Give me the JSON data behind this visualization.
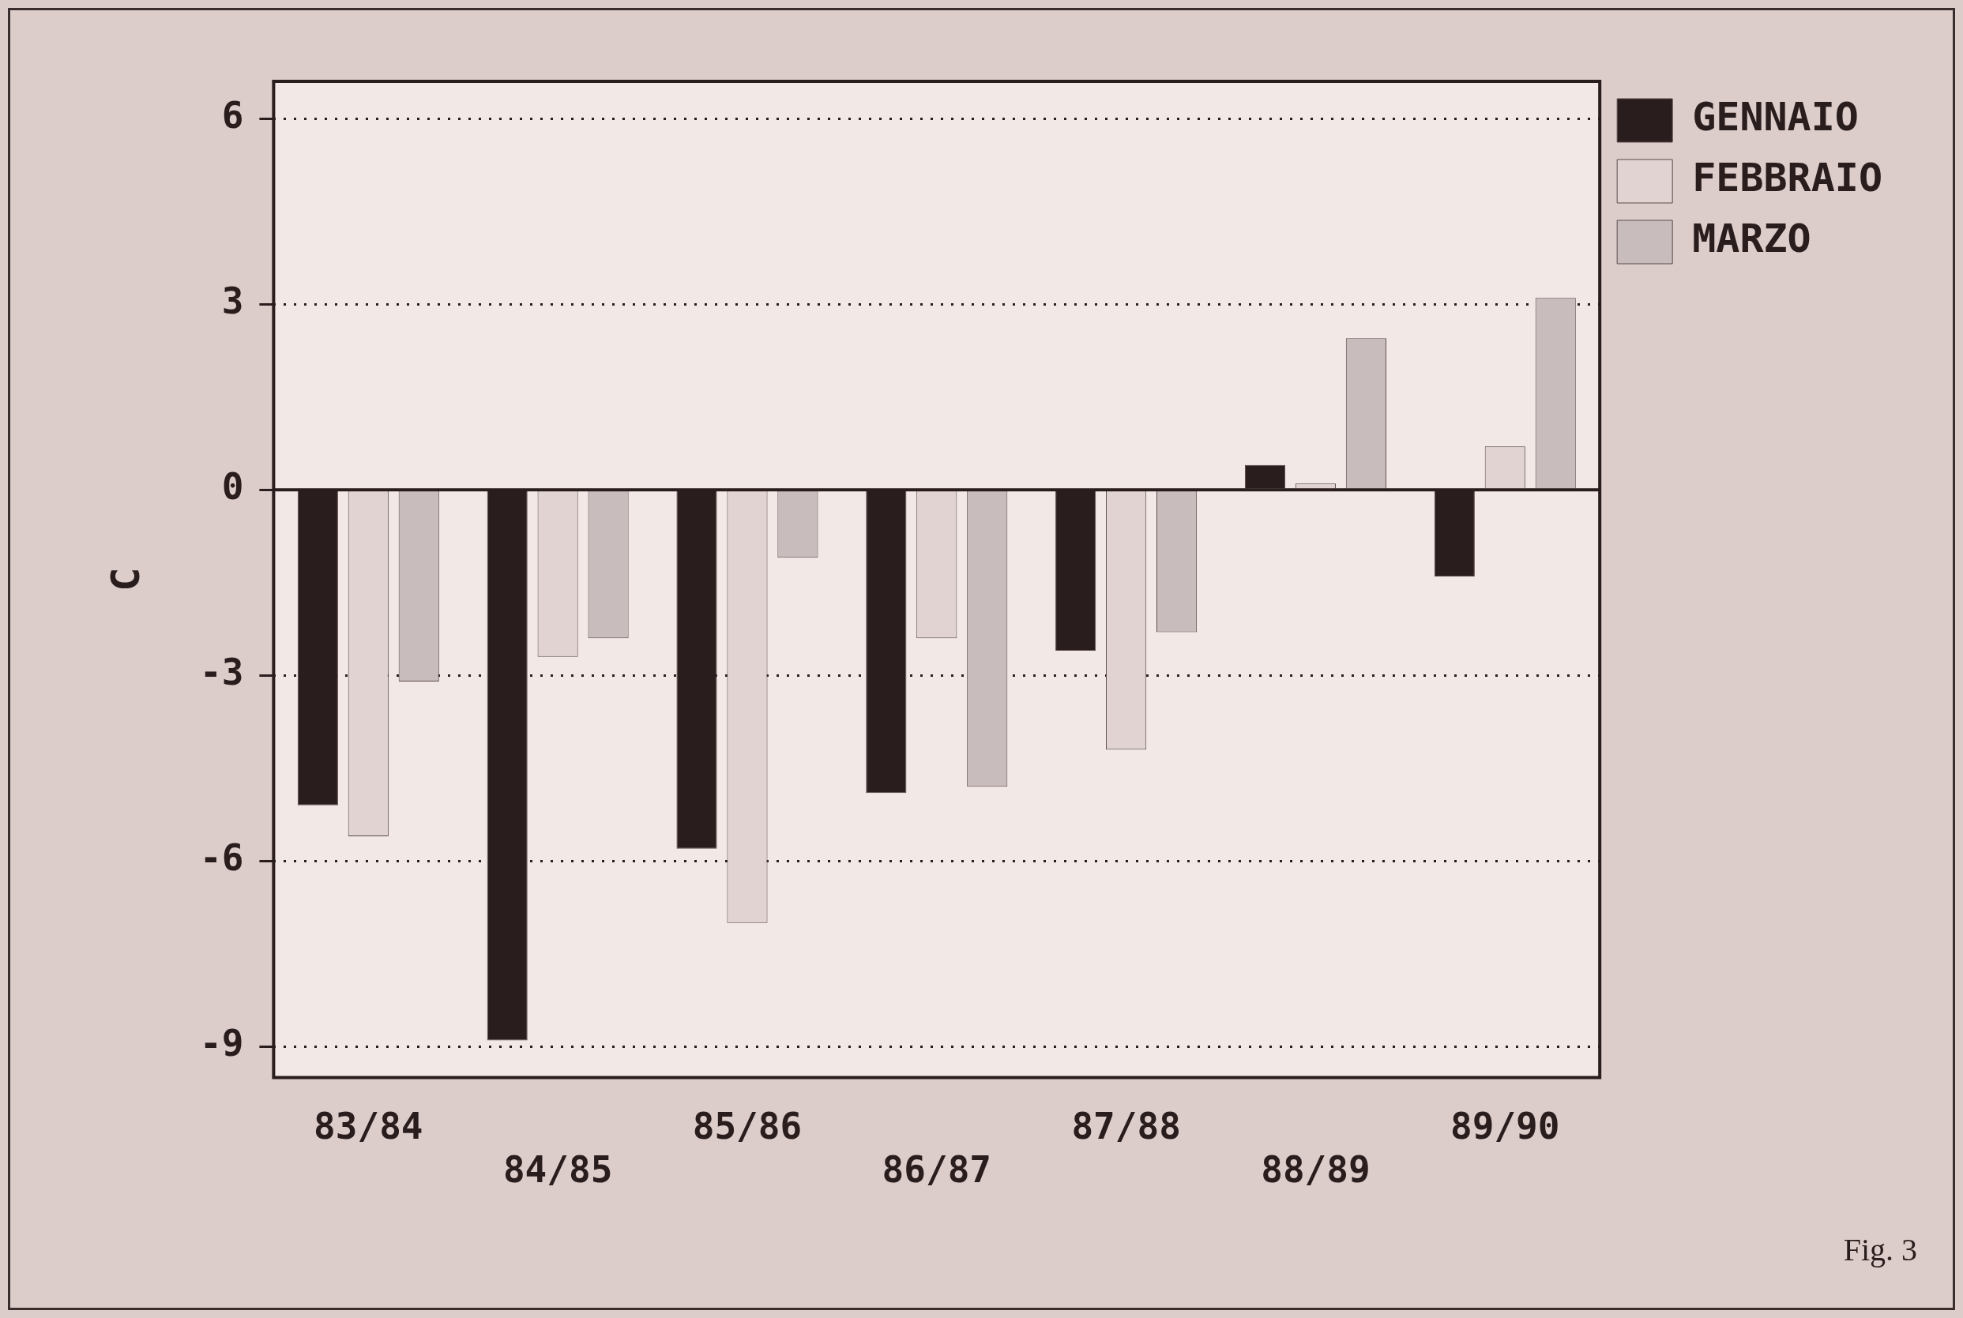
{
  "chart_data": {
    "type": "bar",
    "ylabel": "C",
    "categories": [
      "83/84",
      "84/85",
      "85/86",
      "86/87",
      "87/88",
      "88/89",
      "89/90"
    ],
    "series": [
      {
        "name": "GENNAIO",
        "color": "#2a1d1d",
        "values": [
          -5.1,
          -8.9,
          -5.8,
          -4.9,
          -2.6,
          0.4,
          -1.4
        ]
      },
      {
        "name": "FEBBRAIO",
        "color": "#e2d3d3",
        "values": [
          -5.6,
          -2.7,
          -7.0,
          -2.4,
          -4.2,
          0.1,
          0.7
        ]
      },
      {
        "name": "MARZO",
        "color": "#c9bcbc",
        "values": [
          -3.1,
          -2.4,
          -1.1,
          -4.8,
          -2.3,
          2.45,
          3.1
        ]
      }
    ],
    "ylim": [
      -9.5,
      6.6
    ],
    "yticks": [
      6,
      3,
      0,
      -3,
      -6,
      -9
    ],
    "grid": "y",
    "legend": "right",
    "annotations": [
      "Fig. 3"
    ]
  }
}
